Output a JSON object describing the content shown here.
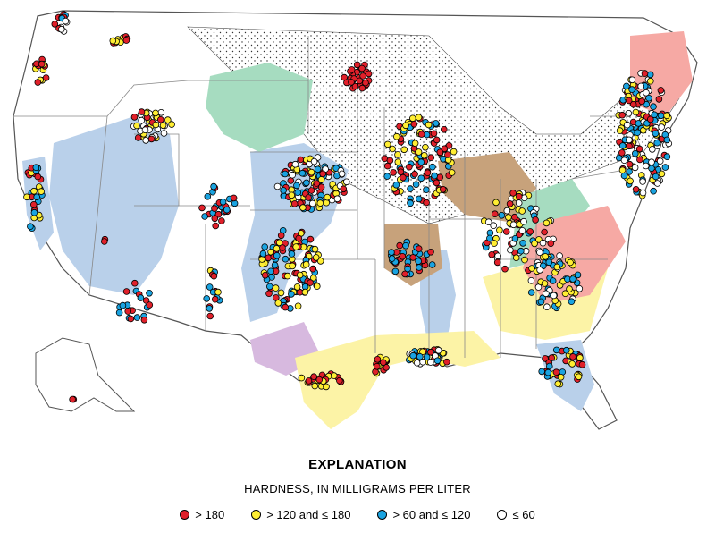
{
  "legend": {
    "heading": "EXPLANATION",
    "subheading": "HARDNESS, IN MILLIGRAMS PER LITER",
    "categories": [
      {
        "label": "> 180",
        "color": "#e0202a"
      },
      {
        "label": "> 120 and ≤ 180",
        "color": "#ffee33"
      },
      {
        "label": "> 60 and ≤ 120",
        "color": "#1aa3e0"
      },
      {
        "label": "≤ 60",
        "color": "#ffffff"
      }
    ]
  },
  "aquifer_colors": {
    "stippled": "#ffffff",
    "blue": "#b9d0ea",
    "green": "#a6dcc0",
    "brown": "#c7a27b",
    "purple": "#d7b9df",
    "yellow": "#fcf3a6",
    "pink": "#f6a9a4",
    "salmon": "#f3b08e"
  },
  "sample_clusters": [
    {
      "region": "northwest-washington",
      "classes": [
        "blue",
        "red",
        "white"
      ]
    },
    {
      "region": "eastern-washington",
      "classes": [
        "red",
        "yellow"
      ]
    },
    {
      "region": "oregon-coast",
      "classes": [
        "red",
        "yellow"
      ]
    },
    {
      "region": "idaho-snake-river",
      "classes": [
        "red",
        "yellow",
        "white"
      ]
    },
    {
      "region": "california-central-valley",
      "classes": [
        "red",
        "yellow",
        "blue"
      ]
    },
    {
      "region": "nevada-basin",
      "classes": [
        "red"
      ]
    },
    {
      "region": "utah-colorado",
      "classes": [
        "red",
        "blue"
      ]
    },
    {
      "region": "arizona",
      "classes": [
        "red",
        "blue"
      ]
    },
    {
      "region": "rio-grande",
      "classes": [
        "red",
        "blue",
        "yellow"
      ]
    },
    {
      "region": "nebraska-high-plains",
      "classes": [
        "red",
        "yellow",
        "blue",
        "white"
      ]
    },
    {
      "region": "kansas-oklahoma-high-plains",
      "classes": [
        "red",
        "yellow",
        "blue"
      ]
    },
    {
      "region": "texas-high-plains",
      "classes": [
        "red",
        "yellow"
      ]
    },
    {
      "region": "north-dakota",
      "classes": [
        "red"
      ]
    },
    {
      "region": "upper-midwest",
      "classes": [
        "red",
        "yellow",
        "blue"
      ]
    },
    {
      "region": "ozarks",
      "classes": [
        "red",
        "blue"
      ]
    },
    {
      "region": "texas-gulf-coast",
      "classes": [
        "red",
        "yellow"
      ]
    },
    {
      "region": "mississippi-embayment",
      "classes": [
        "white",
        "yellow",
        "blue",
        "red"
      ]
    },
    {
      "region": "appalachians",
      "classes": [
        "red",
        "blue",
        "yellow",
        "white"
      ]
    },
    {
      "region": "piedmont-carolinas",
      "classes": [
        "white",
        "yellow",
        "blue"
      ]
    },
    {
      "region": "florida",
      "classes": [
        "red",
        "yellow",
        "blue"
      ]
    },
    {
      "region": "northeast",
      "classes": [
        "blue",
        "red",
        "yellow",
        "white"
      ]
    },
    {
      "region": "alaska",
      "classes": [
        "red"
      ]
    }
  ]
}
